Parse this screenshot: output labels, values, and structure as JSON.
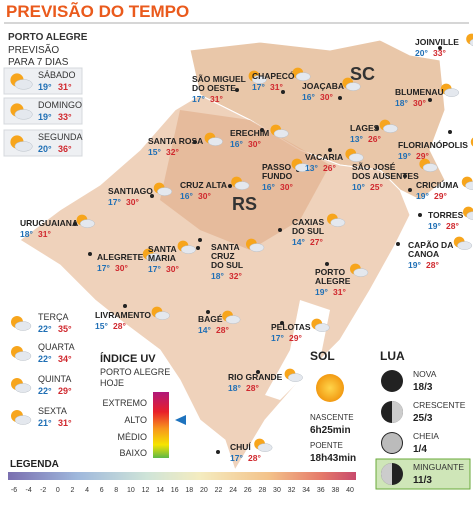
{
  "header": {
    "title": "PREVISÃO DO TEMPO",
    "city": "PORTO ALEGRE",
    "subtitle": [
      "PREVISÃO",
      "PARA 7 DIAS"
    ]
  },
  "forecast": [
    {
      "day": "SÁBADO",
      "min": "19°",
      "max": "31°"
    },
    {
      "day": "DOMINGO",
      "min": "19°",
      "max": "33°"
    },
    {
      "day": "SEGUNDA",
      "min": "20°",
      "max": "36°"
    },
    {
      "day": "TERÇA",
      "min": "22°",
      "max": "35°"
    },
    {
      "day": "QUARTA",
      "min": "22°",
      "max": "34°"
    },
    {
      "day": "QUINTA",
      "min": "22°",
      "max": "29°"
    },
    {
      "day": "SEXTA",
      "min": "21°",
      "max": "31°"
    }
  ],
  "map": {
    "states": [
      "SC",
      "RS"
    ],
    "cities": [
      {
        "name": [
          "SÃO MIGUEL",
          "DO OESTE"
        ],
        "min": "17°",
        "max": "31°"
      },
      {
        "name": [
          "CHAPECÓ"
        ],
        "min": "17°",
        "max": "31°"
      },
      {
        "name": [
          "JOAÇABA"
        ],
        "min": "16°",
        "max": "30°"
      },
      {
        "name": [
          "JOINVILLE"
        ],
        "min": "20°",
        "max": "33°"
      },
      {
        "name": [
          "BLUMENAU"
        ],
        "min": "18°",
        "max": "30°"
      },
      {
        "name": [
          "LAGES"
        ],
        "min": "13°",
        "max": "26°"
      },
      {
        "name": [
          "FLORIANÓPOLIS"
        ],
        "min": "19°",
        "max": "29°"
      },
      {
        "name": [
          "SANTA ROSA"
        ],
        "min": "15°",
        "max": "32°"
      },
      {
        "name": [
          "ERECHIM"
        ],
        "min": "16°",
        "max": "30°"
      },
      {
        "name": [
          "PASSO",
          "FUNDO"
        ],
        "min": "16°",
        "max": "30°"
      },
      {
        "name": [
          "VACARIA"
        ],
        "min": "13°",
        "max": "26°"
      },
      {
        "name": [
          "CRUZ ALTA"
        ],
        "min": "16°",
        "max": "30°"
      },
      {
        "name": [
          "SANTIAGO"
        ],
        "min": "17°",
        "max": "30°"
      },
      {
        "name": [
          "SÃO JOSÉ",
          "DOS AUSENTES"
        ],
        "min": "10°",
        "max": "25°"
      },
      {
        "name": [
          "CRICIÚMA"
        ],
        "min": "19°",
        "max": "29°"
      },
      {
        "name": [
          "URUGUAIANA"
        ],
        "min": "18°",
        "max": "31°"
      },
      {
        "name": [
          "CAXIAS",
          "DO SUL"
        ],
        "min": "14°",
        "max": "27°"
      },
      {
        "name": [
          "TORRES"
        ],
        "min": "19°",
        "max": "28°"
      },
      {
        "name": [
          "ALEGRETE"
        ],
        "min": "17°",
        "max": "30°"
      },
      {
        "name": [
          "SANTA",
          "MARIA"
        ],
        "min": "17°",
        "max": "30°"
      },
      {
        "name": [
          "SANTA",
          "CRUZ",
          "DO SUL"
        ],
        "min": "18°",
        "max": "32°"
      },
      {
        "name": [
          "CAPÃO DA",
          "CANOA"
        ],
        "min": "19°",
        "max": "28°"
      },
      {
        "name": [
          "PORTO",
          "ALEGRE"
        ],
        "min": "19°",
        "max": "31°"
      },
      {
        "name": [
          "LIVRAMENTO"
        ],
        "min": "15°",
        "max": "28°"
      },
      {
        "name": [
          "BAGÉ"
        ],
        "min": "14°",
        "max": "28°"
      },
      {
        "name": [
          "PELOTAS"
        ],
        "min": "17°",
        "max": "29°"
      },
      {
        "name": [
          "RIO GRANDE"
        ],
        "min": "18°",
        "max": "28°"
      },
      {
        "name": [
          "CHUÍ"
        ],
        "min": "17°",
        "max": "28°"
      }
    ]
  },
  "uv": {
    "title": "ÍNDICE UV",
    "subtitle": [
      "PORTO ALEGRE",
      "HOJE"
    ],
    "levels": [
      "EXTREMO",
      "ALTO",
      "MÉDIO",
      "BAIXO"
    ]
  },
  "sun": {
    "title": "SOL",
    "sunrise_label": "NASCENTE",
    "sunrise": "6h25min",
    "sunset_label": "POENTE",
    "sunset": "18h43min"
  },
  "moon": {
    "title": "LUA",
    "phases": [
      {
        "name": "NOVA",
        "date": "18/3"
      },
      {
        "name": "CRESCENTE",
        "date": "25/3"
      },
      {
        "name": "CHEIA",
        "date": "1/4"
      },
      {
        "name": "MINGUANTE",
        "date": "11/3"
      }
    ]
  },
  "legend": {
    "title": "LEGENDA",
    "ticks": [
      -6,
      -4,
      -2,
      0,
      2,
      4,
      6,
      8,
      10,
      12,
      14,
      16,
      18,
      20,
      22,
      24,
      26,
      28,
      30,
      32,
      34,
      36,
      38,
      40
    ]
  }
}
